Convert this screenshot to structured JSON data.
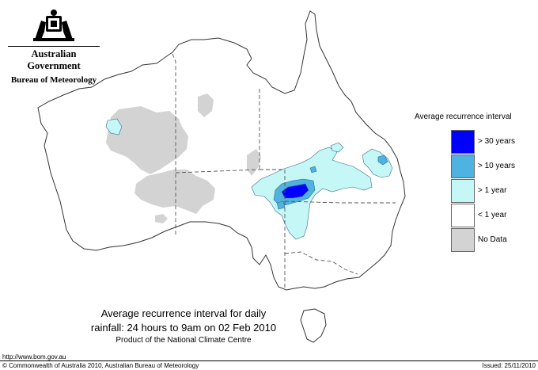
{
  "header": {
    "government": "Australian Government",
    "bureau": "Bureau of Meteorology",
    "crest_icon": "coat-of-arms-icon"
  },
  "map": {
    "caption_line1": "Average recurrence interval for daily",
    "caption_line2": "rainfall: 24 hours to 9am on 02 Feb 2010",
    "caption_line3": "Product of the National Climate Centre"
  },
  "legend": {
    "title": "Average recurrence interval",
    "items": [
      {
        "label": "> 30 years",
        "color": "#0000ff"
      },
      {
        "label": "> 10 years",
        "color": "#4eb3e0"
      },
      {
        "label": "> 1 year",
        "color": "#c6f7f7"
      },
      {
        "label": "< 1 year",
        "color": "#ffffff"
      },
      {
        "label": "No Data",
        "color": "#d3d3d3"
      }
    ]
  },
  "footer": {
    "url": "http://www.bom.gov.au",
    "copyright": "© Commonwealth of Australia 2010, Australian Bureau of Meteorology",
    "issued": "Issued: 25/11/2010"
  }
}
